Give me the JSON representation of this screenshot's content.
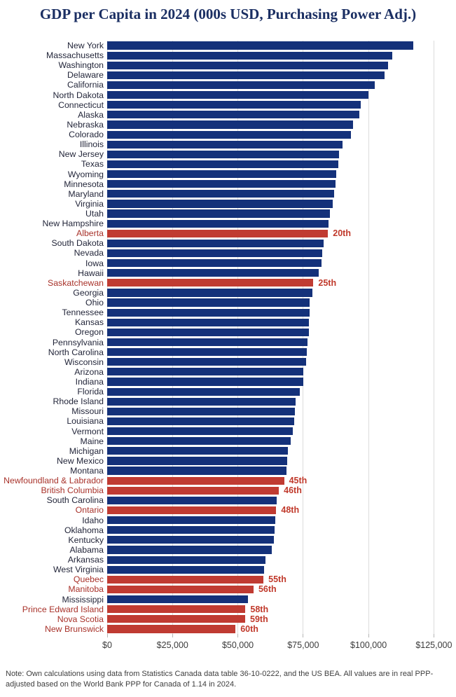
{
  "chart_data": {
    "type": "bar",
    "orientation": "horizontal",
    "title": "GDP per Capita in 2024 (000s USD, Purchasing Power Adj.)",
    "xlabel": "",
    "ylabel": "",
    "xlim": [
      0,
      125000
    ],
    "grid": "vertical-gridlines",
    "legend": "none",
    "x_ticks": [
      {
        "value": 0,
        "label": "$0"
      },
      {
        "value": 25000,
        "label": "$25,000"
      },
      {
        "value": 50000,
        "label": "$50,000"
      },
      {
        "value": 75000,
        "label": "$75,000"
      },
      {
        "value": 100000,
        "label": "$100,000"
      },
      {
        "value": 125000,
        "label": "$125,000"
      }
    ],
    "entries": [
      {
        "label": "New York",
        "value": 117000,
        "group": "us-state",
        "rank": null
      },
      {
        "label": "Massachusetts",
        "value": 109000,
        "group": "us-state",
        "rank": null
      },
      {
        "label": "Washington",
        "value": 107500,
        "group": "us-state",
        "rank": null
      },
      {
        "label": "Delaware",
        "value": 106000,
        "group": "us-state",
        "rank": null
      },
      {
        "label": "California",
        "value": 102500,
        "group": "us-state",
        "rank": null
      },
      {
        "label": "North Dakota",
        "value": 100000,
        "group": "us-state",
        "rank": null
      },
      {
        "label": "Connecticut",
        "value": 97000,
        "group": "us-state",
        "rank": null
      },
      {
        "label": "Alaska",
        "value": 96400,
        "group": "us-state",
        "rank": null
      },
      {
        "label": "Nebraska",
        "value": 94000,
        "group": "us-state",
        "rank": null
      },
      {
        "label": "Colorado",
        "value": 93400,
        "group": "us-state",
        "rank": null
      },
      {
        "label": "Illinois",
        "value": 90000,
        "group": "us-state",
        "rank": null
      },
      {
        "label": "New Jersey",
        "value": 88600,
        "group": "us-state",
        "rank": null
      },
      {
        "label": "Texas",
        "value": 88400,
        "group": "us-state",
        "rank": null
      },
      {
        "label": "Wyoming",
        "value": 87700,
        "group": "us-state",
        "rank": null
      },
      {
        "label": "Minnesota",
        "value": 87500,
        "group": "us-state",
        "rank": null
      },
      {
        "label": "Maryland",
        "value": 86900,
        "group": "us-state",
        "rank": null
      },
      {
        "label": "Virginia",
        "value": 86200,
        "group": "us-state",
        "rank": null
      },
      {
        "label": "Utah",
        "value": 85300,
        "group": "us-state",
        "rank": null
      },
      {
        "label": "New Hampshire",
        "value": 84800,
        "group": "us-state",
        "rank": null
      },
      {
        "label": "Alberta",
        "value": 84500,
        "group": "canadian-province",
        "rank": "20th"
      },
      {
        "label": "South Dakota",
        "value": 82700,
        "group": "us-state",
        "rank": null
      },
      {
        "label": "Nevada",
        "value": 82200,
        "group": "us-state",
        "rank": null
      },
      {
        "label": "Iowa",
        "value": 81900,
        "group": "us-state",
        "rank": null
      },
      {
        "label": "Hawaii",
        "value": 81000,
        "group": "us-state",
        "rank": null
      },
      {
        "label": "Saskatchewan",
        "value": 78900,
        "group": "canadian-province",
        "rank": "25th"
      },
      {
        "label": "Georgia",
        "value": 78600,
        "group": "us-state",
        "rank": null
      },
      {
        "label": "Ohio",
        "value": 77500,
        "group": "us-state",
        "rank": null
      },
      {
        "label": "Tennessee",
        "value": 77400,
        "group": "us-state",
        "rank": null
      },
      {
        "label": "Kansas",
        "value": 77300,
        "group": "us-state",
        "rank": null
      },
      {
        "label": "Oregon",
        "value": 77100,
        "group": "us-state",
        "rank": null
      },
      {
        "label": "Pennsylvania",
        "value": 76600,
        "group": "us-state",
        "rank": null
      },
      {
        "label": "North Carolina",
        "value": 76300,
        "group": "us-state",
        "rank": null
      },
      {
        "label": "Wisconsin",
        "value": 76000,
        "group": "us-state",
        "rank": null
      },
      {
        "label": "Arizona",
        "value": 75100,
        "group": "us-state",
        "rank": null
      },
      {
        "label": "Indiana",
        "value": 75000,
        "group": "us-state",
        "rank": null
      },
      {
        "label": "Florida",
        "value": 73700,
        "group": "us-state",
        "rank": null
      },
      {
        "label": "Rhode Island",
        "value": 72000,
        "group": "us-state",
        "rank": null
      },
      {
        "label": "Missouri",
        "value": 71800,
        "group": "us-state",
        "rank": null
      },
      {
        "label": "Louisiana",
        "value": 71500,
        "group": "us-state",
        "rank": null
      },
      {
        "label": "Vermont",
        "value": 71100,
        "group": "us-state",
        "rank": null
      },
      {
        "label": "Maine",
        "value": 70300,
        "group": "us-state",
        "rank": null
      },
      {
        "label": "Michigan",
        "value": 69100,
        "group": "us-state",
        "rank": null
      },
      {
        "label": "New Mexico",
        "value": 68900,
        "group": "us-state",
        "rank": null
      },
      {
        "label": "Montana",
        "value": 68700,
        "group": "us-state",
        "rank": null
      },
      {
        "label": "Newfoundland & Labrador",
        "value": 67700,
        "group": "canadian-province",
        "rank": "45th"
      },
      {
        "label": "British Columbia",
        "value": 65700,
        "group": "canadian-province",
        "rank": "46th"
      },
      {
        "label": "South Carolina",
        "value": 64900,
        "group": "us-state",
        "rank": null
      },
      {
        "label": "Ontario",
        "value": 64700,
        "group": "canadian-province",
        "rank": "48th"
      },
      {
        "label": "Idaho",
        "value": 64300,
        "group": "us-state",
        "rank": null
      },
      {
        "label": "Oklahoma",
        "value": 64100,
        "group": "us-state",
        "rank": null
      },
      {
        "label": "Kentucky",
        "value": 63900,
        "group": "us-state",
        "rank": null
      },
      {
        "label": "Alabama",
        "value": 62900,
        "group": "us-state",
        "rank": null
      },
      {
        "label": "Arkansas",
        "value": 60700,
        "group": "us-state",
        "rank": null
      },
      {
        "label": "West Virginia",
        "value": 60000,
        "group": "us-state",
        "rank": null
      },
      {
        "label": "Quebec",
        "value": 59800,
        "group": "canadian-province",
        "rank": "55th"
      },
      {
        "label": "Manitoba",
        "value": 56000,
        "group": "canadian-province",
        "rank": "56th"
      },
      {
        "label": "Mississippi",
        "value": 53800,
        "group": "us-state",
        "rank": null
      },
      {
        "label": "Prince Edward Island",
        "value": 52900,
        "group": "canadian-province",
        "rank": "58th"
      },
      {
        "label": "Nova Scotia",
        "value": 52800,
        "group": "canadian-province",
        "rank": "59th"
      },
      {
        "label": "New Brunswick",
        "value": 49100,
        "group": "canadian-province",
        "rank": "60th"
      }
    ]
  },
  "note": "Note: Own calculations using data from Statistics Canada data table 36-10-0222, and the US BEA. All values are in real PPP-adjusted based on the World Bank PPP for Canada of 1.14 in 2024.",
  "colors": {
    "us_bar": "#14317A",
    "canada_bar": "#C03B32",
    "us_label": "#23263A",
    "canada_label": "#A8322A",
    "rank_label": "#C0392B",
    "title": "#1B2F63",
    "gridline": "#DCDCDC",
    "tick": "#B5B5B5",
    "axis_text": "#3B3B3B",
    "note_text": "#3E3E3E"
  }
}
